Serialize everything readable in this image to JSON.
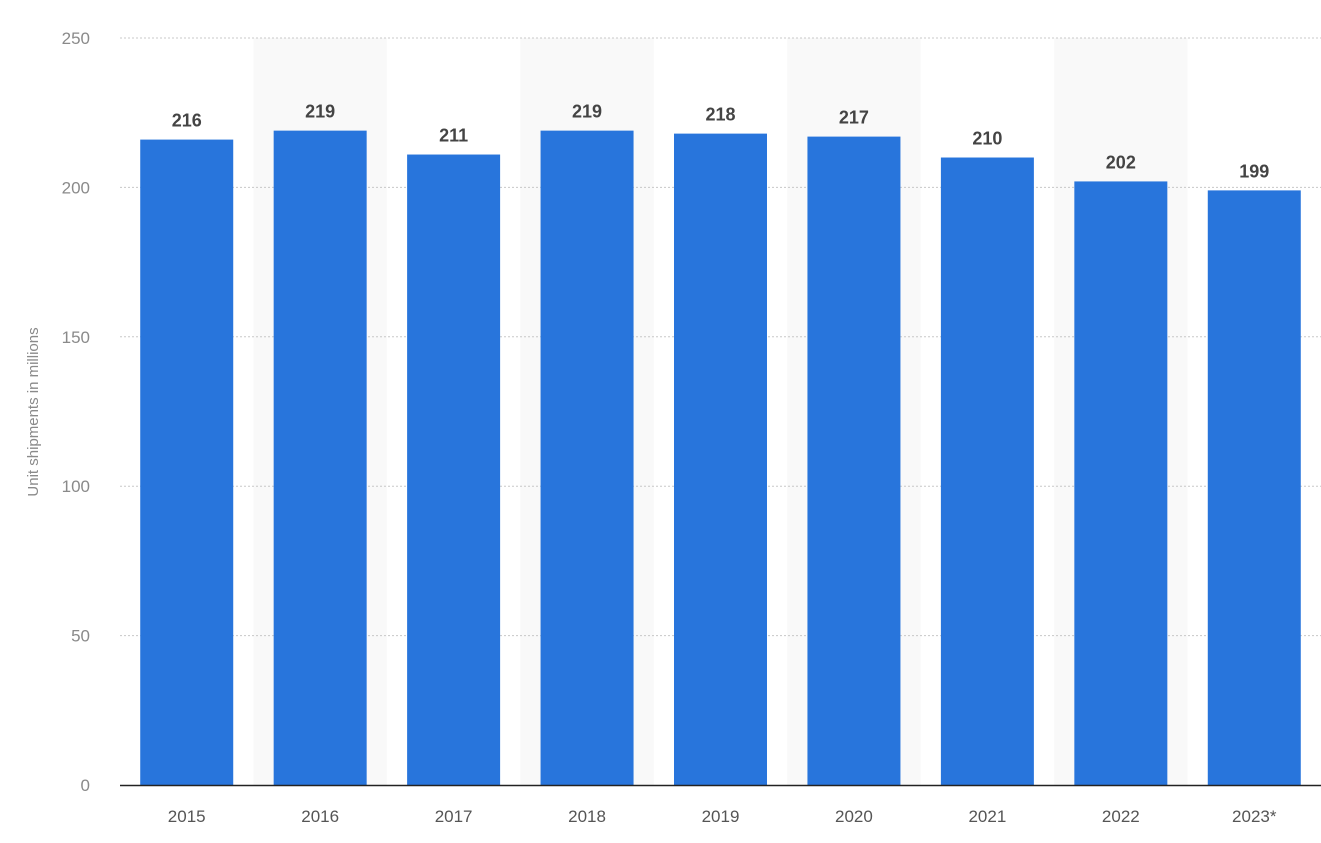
{
  "chart_data": {
    "type": "bar",
    "categories": [
      "2015",
      "2016",
      "2017",
      "2018",
      "2019",
      "2020",
      "2021",
      "2022",
      "2023*"
    ],
    "values": [
      216,
      219,
      211,
      219,
      218,
      217,
      210,
      202,
      199
    ],
    "data_labels": [
      "216",
      "219",
      "211",
      "219",
      "218",
      "217",
      "210",
      "202",
      "199"
    ],
    "title": "",
    "xlabel": "",
    "ylabel": "Unit shipments in millions",
    "ylim": [
      0,
      250
    ],
    "yticks": [
      0,
      50,
      100,
      150,
      200,
      250
    ],
    "grid": true,
    "legend": "none",
    "colors": {
      "bar": "#2875dc",
      "band": "#f9f9f9",
      "grid": "#c8c8c8",
      "axis": "#222222"
    }
  }
}
